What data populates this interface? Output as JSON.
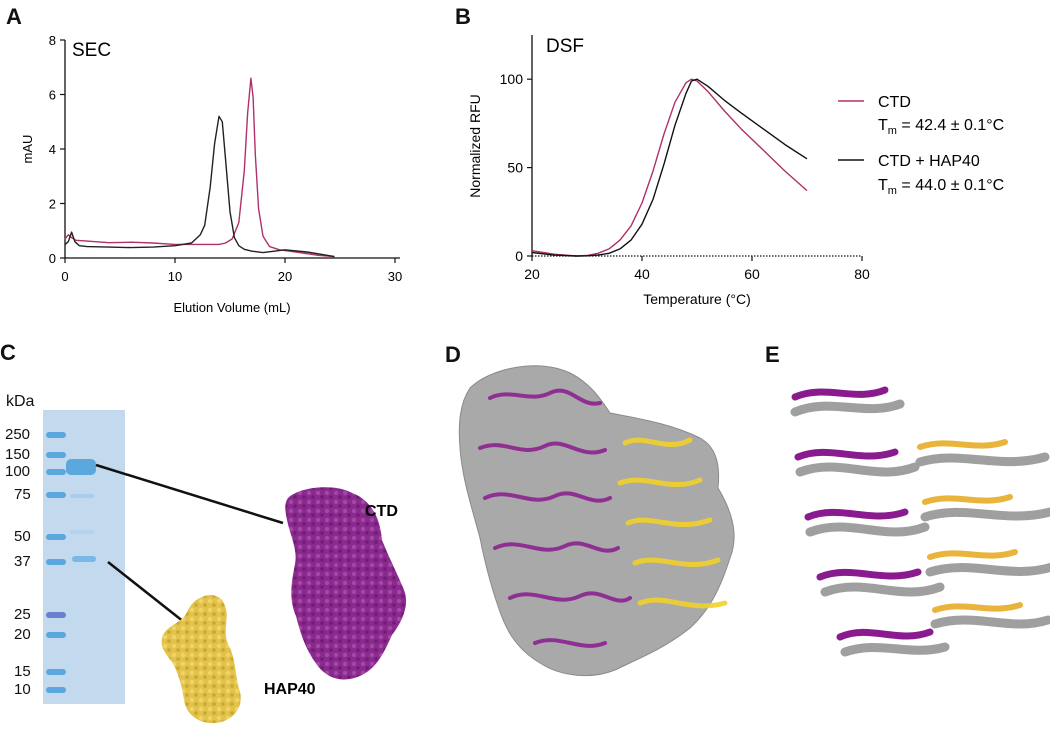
{
  "panels": {
    "A": {
      "letter": "A"
    },
    "B": {
      "letter": "B"
    },
    "C": {
      "letter": "C"
    },
    "D": {
      "letter": "D"
    },
    "E": {
      "letter": "E"
    }
  },
  "chart_data": [
    {
      "type": "line",
      "title": "SEC",
      "xlabel": "Elution Volume (mL)",
      "ylabel": "mAU",
      "xlim": [
        0,
        30
      ],
      "ylim": [
        0,
        8
      ],
      "xticks": [
        "0",
        "10",
        "20",
        "30"
      ],
      "yticks": [
        "0",
        "2",
        "4",
        "6",
        "8"
      ],
      "series": [
        {
          "color": "#b0306a",
          "x": [
            0,
            0.3,
            0.6,
            1,
            2,
            4,
            6,
            8,
            10,
            12,
            13,
            14,
            14.6,
            15.2,
            15.8,
            16.3,
            16.6,
            16.9,
            17.1,
            17.3,
            17.6,
            18,
            18.6,
            19.5,
            21,
            23,
            24.5
          ],
          "y": [
            0.7,
            0.85,
            0.75,
            0.65,
            0.62,
            0.56,
            0.58,
            0.55,
            0.5,
            0.5,
            0.5,
            0.5,
            0.55,
            0.7,
            1.3,
            3.2,
            5.3,
            6.6,
            5.9,
            3.8,
            1.8,
            0.8,
            0.42,
            0.3,
            0.22,
            0.1,
            0.05
          ]
        },
        {
          "color": "#222222",
          "x": [
            0,
            0.3,
            0.6,
            0.9,
            1.3,
            2,
            4,
            6,
            8,
            10,
            11.5,
            12.3,
            12.7,
            13.2,
            13.6,
            14,
            14.3,
            14.6,
            15,
            15.4,
            15.8,
            16.3,
            17,
            18,
            20,
            22,
            23.5,
            24.5
          ],
          "y": [
            0.5,
            0.6,
            0.95,
            0.6,
            0.45,
            0.42,
            0.4,
            0.38,
            0.4,
            0.45,
            0.55,
            0.85,
            1.2,
            2.6,
            4.2,
            5.2,
            5.0,
            3.6,
            1.7,
            0.75,
            0.45,
            0.32,
            0.25,
            0.2,
            0.3,
            0.22,
            0.12,
            0.05
          ]
        }
      ]
    },
    {
      "type": "line",
      "title": "DSF",
      "xlabel": "Temperature (°C)",
      "ylabel": "Normalized RFU",
      "xlim": [
        20,
        80
      ],
      "ylim": [
        0,
        125
      ],
      "xticks": [
        "20",
        "40",
        "60",
        "80"
      ],
      "yticks": [
        "0",
        "50",
        "100"
      ],
      "series": [
        {
          "name": "CTD",
          "sub": "m",
          "tm_pre": "T",
          "tm_post": " = 42.4 ± 0.1°C",
          "color": "#b0306a",
          "x": [
            20,
            24,
            28,
            30,
            32,
            34,
            36,
            38,
            40,
            42,
            44,
            46,
            48,
            49,
            50,
            52,
            55,
            58,
            62,
            66,
            70
          ],
          "y": [
            3,
            1,
            0,
            0.3,
            1.5,
            4,
            9,
            17,
            30,
            48,
            69,
            87,
            98,
            100,
            99,
            93,
            82,
            72,
            60,
            48,
            37
          ]
        },
        {
          "name": "CTD + HAP40",
          "sub": "m",
          "tm_pre": "T",
          "tm_post": " = 44.0 ± 0.1°C",
          "color": "#111111",
          "x": [
            20,
            24,
            28,
            30,
            32,
            34,
            36,
            38,
            40,
            42,
            44,
            46,
            48,
            49,
            50,
            52,
            55,
            58,
            62,
            66,
            70
          ],
          "y": [
            2,
            0.5,
            0,
            0.1,
            0.5,
            1.5,
            4,
            9,
            18,
            32,
            52,
            74,
            92,
            99,
            100,
            96,
            88,
            81,
            72,
            63,
            55
          ]
        }
      ]
    }
  ],
  "gel": {
    "unit": "kDa",
    "markers": [
      "250",
      "150",
      "100",
      "75",
      "50",
      "37",
      "25",
      "20",
      "15",
      "10"
    ],
    "bands": {
      "marker": "#5aa8de",
      "sample": "#6fb3e3",
      "background": "#c2d9ee"
    }
  },
  "structures": {
    "ctd_label": "CTD",
    "hap40_label": "HAP40",
    "colors": {
      "ctd": "#8a2a8e",
      "hap40": "#e3c24a",
      "map": "#a9a9a9",
      "ref": "#9a9a9a",
      "helix_purple": "#8a1b8f",
      "helix_yellow": "#f2d22a",
      "helix_orange": "#e9b43c"
    }
  }
}
